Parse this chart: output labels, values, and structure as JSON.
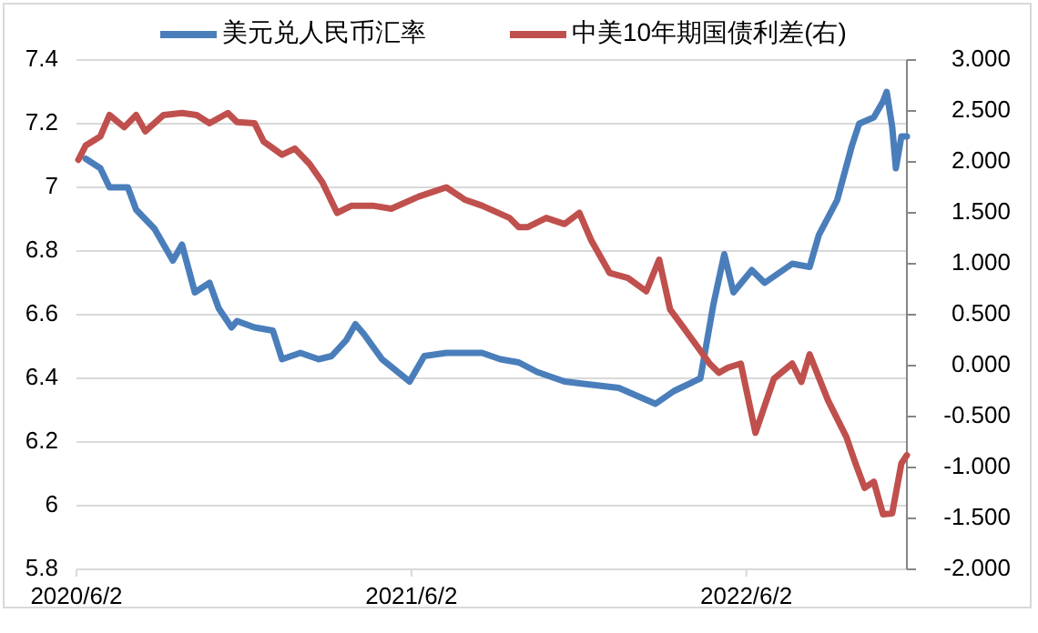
{
  "chart_data": {
    "type": "line",
    "xlim": [
      "2020-06-02",
      "2022-11-24"
    ],
    "xticks": [
      {
        "value": "2020-06-02",
        "label": "2020/6/2"
      },
      {
        "value": "2021-06-02",
        "label": "2021/6/2"
      },
      {
        "value": "2022-06-02",
        "label": "2022/6/2"
      }
    ],
    "ylim": [
      5.8,
      7.4
    ],
    "yticks": [
      5.8,
      6,
      6.2,
      6.4,
      6.6,
      6.8,
      7,
      7.2,
      7.4
    ],
    "y2lim": [
      -2,
      3
    ],
    "y2ticks": [
      {
        "value": -2,
        "label": "-2.000"
      },
      {
        "value": -1.5,
        "label": "-1.500"
      },
      {
        "value": -1,
        "label": "-1.000"
      },
      {
        "value": -0.5,
        "label": "-0.500"
      },
      {
        "value": 0,
        "label": "0.000"
      },
      {
        "value": 0.5,
        "label": "0.500"
      },
      {
        "value": 1,
        "label": "1.000"
      },
      {
        "value": 1.5,
        "label": "1.500"
      },
      {
        "value": 2,
        "label": "2.000"
      },
      {
        "value": 2.5,
        "label": "2.500"
      },
      {
        "value": 3,
        "label": "3.000"
      }
    ],
    "grid": "y",
    "legend": "top",
    "series": [
      {
        "name": "美元兑人民币汇率",
        "color": "#4a7ebb",
        "x": [
          "2020-06-12",
          "2020-06-28",
          "2020-07-08",
          "2020-07-28",
          "2020-08-06",
          "2020-08-26",
          "2020-09-05",
          "2020-09-15",
          "2020-09-25",
          "2020-10-09",
          "2020-10-25",
          "2020-11-04",
          "2020-11-18",
          "2020-11-24",
          "2020-12-13",
          "2021-01-02",
          "2021-01-12",
          "2021-02-01",
          "2021-02-21",
          "2021-03-07",
          "2021-03-23",
          "2021-04-02",
          "2021-04-11",
          "2021-05-01",
          "2021-05-31",
          "2021-06-16",
          "2021-07-10",
          "2021-07-30",
          "2021-08-18",
          "2021-09-07",
          "2021-09-27",
          "2021-10-17",
          "2021-11-16",
          "2021-12-15",
          "2022-01-14",
          "2022-02-23",
          "2022-03-15",
          "2022-04-13",
          "2022-04-27",
          "2022-05-09",
          "2022-05-19",
          "2022-06-08",
          "2022-06-22",
          "2022-07-22",
          "2022-08-10",
          "2022-08-20",
          "2022-09-09",
          "2022-09-25",
          "2022-10-03",
          "2022-10-19",
          "2022-10-29",
          "2022-11-02",
          "2022-11-08",
          "2022-11-12",
          "2022-11-18",
          "2022-11-24"
        ],
        "values": [
          7.09,
          7.06,
          7.0,
          7.0,
          6.93,
          6.87,
          6.82,
          6.77,
          6.82,
          6.67,
          6.7,
          6.62,
          6.56,
          6.58,
          6.56,
          6.55,
          6.46,
          6.48,
          6.46,
          6.47,
          6.52,
          6.57,
          6.54,
          6.46,
          6.39,
          6.47,
          6.48,
          6.48,
          6.48,
          6.46,
          6.45,
          6.42,
          6.39,
          6.38,
          6.37,
          6.32,
          6.36,
          6.4,
          6.63,
          6.79,
          6.67,
          6.74,
          6.7,
          6.76,
          6.75,
          6.85,
          6.96,
          7.13,
          7.2,
          7.22,
          7.27,
          7.3,
          7.19,
          7.06,
          7.16,
          7.16
        ]
      },
      {
        "name": "中美10年期国债利差(右)",
        "color": "#c0504d",
        "axis": "y2",
        "x": [
          "2020-06-04",
          "2020-06-12",
          "2020-06-28",
          "2020-07-08",
          "2020-07-24",
          "2020-08-06",
          "2020-08-16",
          "2020-09-05",
          "2020-09-25",
          "2020-10-11",
          "2020-10-25",
          "2020-11-14",
          "2020-11-24",
          "2020-12-13",
          "2020-12-23",
          "2021-01-12",
          "2021-01-26",
          "2021-02-11",
          "2021-02-25",
          "2021-03-13",
          "2021-03-29",
          "2021-04-21",
          "2021-05-11",
          "2021-06-10",
          "2021-07-10",
          "2021-07-30",
          "2021-08-18",
          "2021-09-17",
          "2021-09-27",
          "2021-10-07",
          "2021-10-27",
          "2021-11-16",
          "2021-12-02",
          "2021-12-15",
          "2022-01-04",
          "2022-01-24",
          "2022-02-13",
          "2022-02-27",
          "2022-03-11",
          "2022-03-25",
          "2022-04-23",
          "2022-05-03",
          "2022-05-13",
          "2022-05-27",
          "2022-06-12",
          "2022-07-02",
          "2022-07-22",
          "2022-08-01",
          "2022-08-10",
          "2022-08-30",
          "2022-09-19",
          "2022-09-29",
          "2022-10-09",
          "2022-10-19",
          "2022-10-29",
          "2022-11-08",
          "2022-11-18",
          "2022-11-24"
        ],
        "values": [
          2.02,
          2.16,
          2.25,
          2.46,
          2.34,
          2.46,
          2.3,
          2.46,
          2.48,
          2.46,
          2.38,
          2.48,
          2.39,
          2.38,
          2.2,
          2.07,
          2.13,
          1.98,
          1.8,
          1.5,
          1.57,
          1.57,
          1.54,
          1.66,
          1.75,
          1.63,
          1.57,
          1.45,
          1.36,
          1.36,
          1.45,
          1.39,
          1.5,
          1.23,
          0.91,
          0.86,
          0.73,
          1.04,
          0.55,
          0.38,
          0.02,
          -0.07,
          -0.02,
          0.02,
          -0.66,
          -0.13,
          0.02,
          -0.16,
          0.11,
          -0.34,
          -0.7,
          -0.96,
          -1.2,
          -1.14,
          -1.46,
          -1.45,
          -0.96,
          -0.88
        ]
      }
    ]
  }
}
